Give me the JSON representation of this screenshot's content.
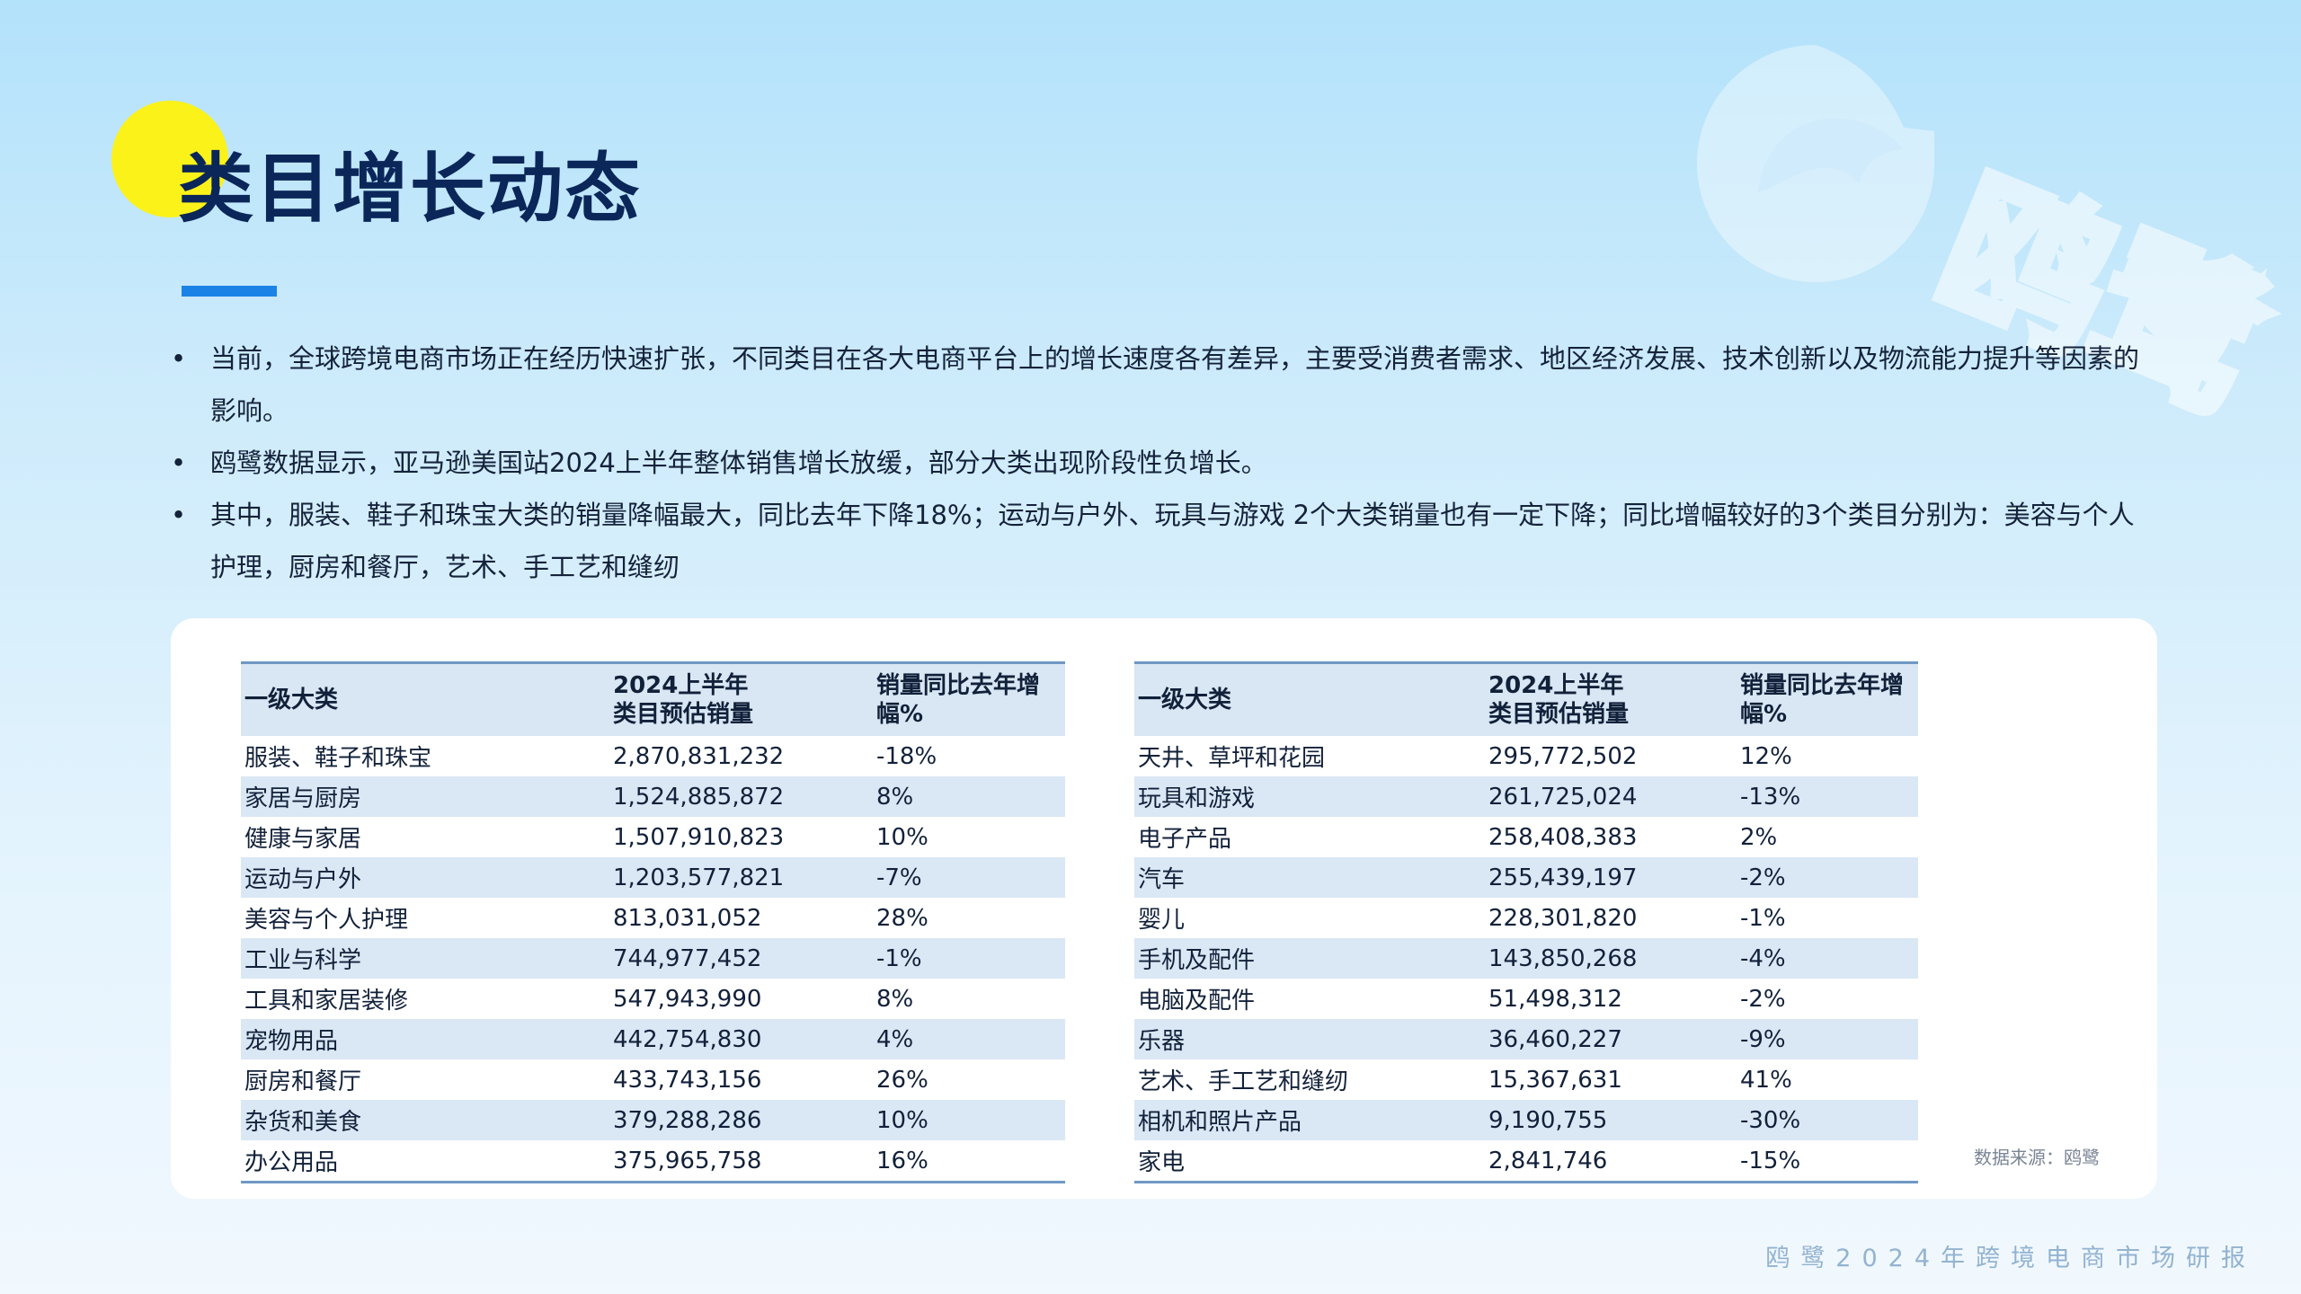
{
  "title": "类目增长动态",
  "bullets": [
    "当前，全球跨境电商市场正在经历快速扩张，不同类目在各大电商平台上的增长速度各有差异，主要受消费者需求、地区经济发展、技术创新以及物流能力提升等因素的影响。",
    "鸥鹭数据显示，亚马逊美国站2024上半年整体销售增长放缓，部分大类出现阶段性负增长。",
    "其中，服装、鞋子和珠宝大类的销量降幅最大，同比去年下降18%；运动与户外、玩具与游戏 2个大类销量也有一定下降；同比增幅较好的3个类目分别为：美容与个人护理，厨房和餐厅，艺术、手工艺和缝纫"
  ],
  "table_headers": {
    "category": "一级大类",
    "sales_line1": "2024上半年",
    "sales_line2": "类目预估销量",
    "yoy_line1": "销量同比去年增",
    "yoy_line2": "幅%"
  },
  "table_left": [
    {
      "category": "服装、鞋子和珠宝",
      "sales": "2,870,831,232",
      "yoy": "-18%"
    },
    {
      "category": "家居与厨房",
      "sales": "1,524,885,872",
      "yoy": "8%"
    },
    {
      "category": "健康与家居",
      "sales": "1,507,910,823",
      "yoy": "10%"
    },
    {
      "category": "运动与户外",
      "sales": "1,203,577,821",
      "yoy": "-7%"
    },
    {
      "category": "美容与个人护理",
      "sales": "813,031,052",
      "yoy": "28%"
    },
    {
      "category": "工业与科学",
      "sales": "744,977,452",
      "yoy": "-1%"
    },
    {
      "category": "工具和家居装修",
      "sales": "547,943,990",
      "yoy": "8%"
    },
    {
      "category": "宠物用品",
      "sales": "442,754,830",
      "yoy": "4%"
    },
    {
      "category": "厨房和餐厅",
      "sales": "433,743,156",
      "yoy": "26%"
    },
    {
      "category": "杂货和美食",
      "sales": "379,288,286",
      "yoy": "10%"
    },
    {
      "category": "办公用品",
      "sales": "375,965,758",
      "yoy": "16%"
    }
  ],
  "table_right": [
    {
      "category": "天井、草坪和花园",
      "sales": "295,772,502",
      "yoy": "12%"
    },
    {
      "category": "玩具和游戏",
      "sales": "261,725,024",
      "yoy": "-13%"
    },
    {
      "category": "电子产品",
      "sales": "258,408,383",
      "yoy": "2%"
    },
    {
      "category": "汽车",
      "sales": "255,439,197",
      "yoy": "-2%"
    },
    {
      "category": "婴儿",
      "sales": "228,301,820",
      "yoy": "-1%"
    },
    {
      "category": "手机及配件",
      "sales": "143,850,268",
      "yoy": "-4%"
    },
    {
      "category": "电脑及配件",
      "sales": "51,498,312",
      "yoy": "-2%"
    },
    {
      "category": "乐器",
      "sales": "36,460,227",
      "yoy": "-9%"
    },
    {
      "category": "艺术、手工艺和缝纫",
      "sales": "15,367,631",
      "yoy": "41%"
    },
    {
      "category": "相机和照片产品",
      "sales": "9,190,755",
      "yoy": "-30%"
    },
    {
      "category": "家电",
      "sales": "2,841,746",
      "yoy": "-15%"
    }
  ],
  "source_note": "数据来源：鸥鹭",
  "watermark_text": "鸥鹭",
  "footer": "鸥鹭2024年跨境电商市场研报",
  "colors": {
    "title": "#0b2659",
    "accent_dot": "#fbf21a",
    "underline": "#1b82e6",
    "row_stripe": "#dae7f4",
    "table_rule": "#6f98c4"
  },
  "icons": {
    "watermark": "bird-logo-icon"
  }
}
